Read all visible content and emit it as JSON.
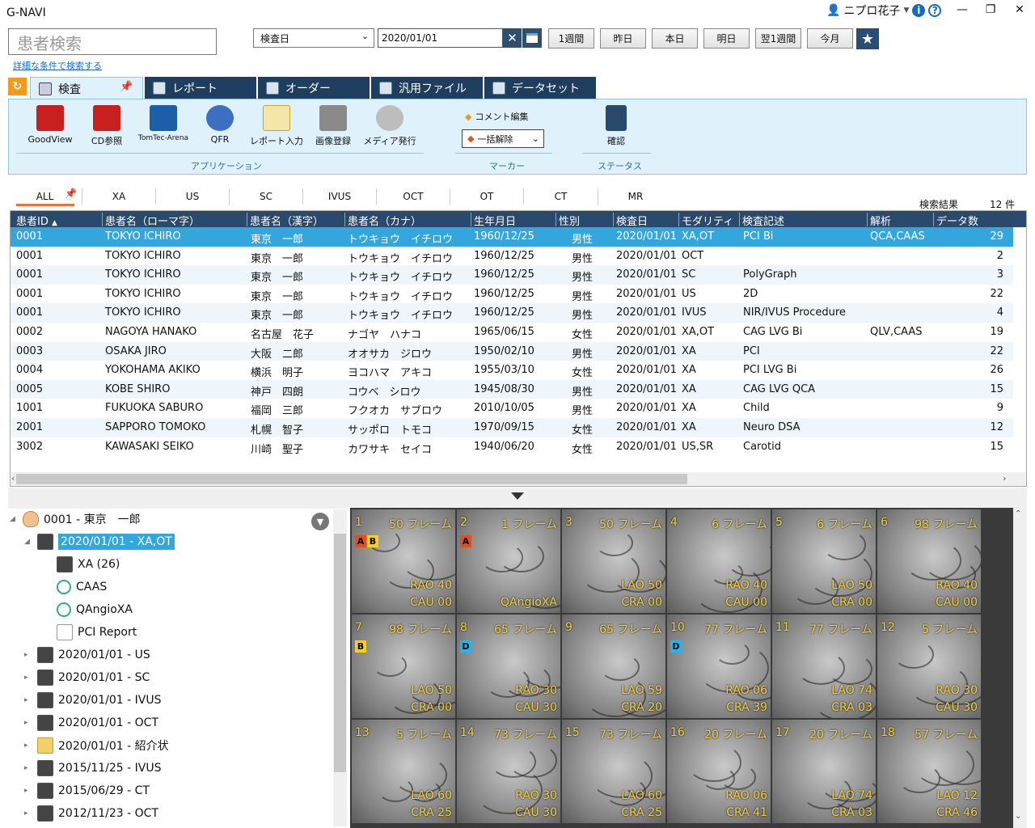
{
  "app": {
    "title": "G-NAVI",
    "user": "ニプロ花子"
  },
  "search": {
    "patient_placeholder": "患者検索",
    "advanced_link": "詳細な条件で検索する",
    "date_type": "検査日",
    "date_value": "2020/01/01",
    "quick_buttons": [
      "1週間",
      "昨日",
      "本日",
      "明日",
      "翌1週間",
      "今月"
    ]
  },
  "tabs": [
    "検査",
    "レポート",
    "オーダー",
    "汎用ファイル",
    "データセット"
  ],
  "ribbon": {
    "apps": [
      "GoodView",
      "CD参照",
      "TomTec-Arena",
      "QFR",
      "レポート入力",
      "画像登録",
      "メディア発行"
    ],
    "group_app": "アプリケーション",
    "comment_edit": "コメント編集",
    "marker_clear": "一括解除",
    "group_marker": "マーカー",
    "confirm": "確認",
    "group_status": "ステータス"
  },
  "modalities": [
    "ALL",
    "XA",
    "US",
    "SC",
    "IVUS",
    "OCT",
    "OT",
    "CT",
    "MR"
  ],
  "results": {
    "label": "検索結果",
    "count": "12 件"
  },
  "table": {
    "headers": [
      "患者ID",
      "患者名（ローマ字）",
      "患者名（漢字）",
      "患者名（カナ）",
      "生年月日",
      "性別",
      "検査日",
      "モダリティ",
      "検査記述",
      "解析",
      "データ数"
    ],
    "sort_indicator": "▲",
    "rows": [
      [
        "0001",
        "TOKYO ICHIRO",
        "東京　一郎",
        "トウキョウ　イチロウ",
        "1960/12/25",
        "男性",
        "2020/01/01",
        "XA,OT",
        "PCI Bi",
        "QCA,CAAS",
        "29"
      ],
      [
        "0001",
        "TOKYO ICHIRO",
        "東京　一郎",
        "トウキョウ　イチロウ",
        "1960/12/25",
        "男性",
        "2020/01/01",
        "OCT",
        "",
        "",
        "2"
      ],
      [
        "0001",
        "TOKYO ICHIRO",
        "東京　一郎",
        "トウキョウ　イチロウ",
        "1960/12/25",
        "男性",
        "2020/01/01",
        "SC",
        "PolyGraph",
        "",
        "3"
      ],
      [
        "0001",
        "TOKYO ICHIRO",
        "東京　一郎",
        "トウキョウ　イチロウ",
        "1960/12/25",
        "男性",
        "2020/01/01",
        "US",
        "2D",
        "",
        "22"
      ],
      [
        "0001",
        "TOKYO ICHIRO",
        "東京　一郎",
        "トウキョウ　イチロウ",
        "1960/12/25",
        "男性",
        "2020/01/01",
        "IVUS",
        "NIR/IVUS Procedure",
        "",
        "4"
      ],
      [
        "0002",
        "NAGOYA HANAKO",
        "名古屋　花子",
        "ナゴヤ　ハナコ",
        "1965/06/15",
        "女性",
        "2020/01/01",
        "XA,OT",
        "CAG LVG Bi",
        "QLV,CAAS",
        "19"
      ],
      [
        "0003",
        "OSAKA JIRO",
        "大阪　二郎",
        "オオサカ　ジロウ",
        "1950/02/10",
        "男性",
        "2020/01/01",
        "XA",
        "PCI",
        "",
        "22"
      ],
      [
        "0004",
        "YOKOHAMA AKIKO",
        "横浜　明子",
        "ヨコハマ　アキコ",
        "1955/03/10",
        "女性",
        "2020/01/01",
        "XA",
        "PCI LVG Bi",
        "",
        "26"
      ],
      [
        "0005",
        "KOBE SHIRO",
        "神戸　四朗",
        "コウベ　シロウ",
        "1945/08/30",
        "男性",
        "2020/01/01",
        "XA",
        "CAG LVG QCA",
        "",
        "15"
      ],
      [
        "1001",
        "FUKUOKA SABURO",
        "福岡　三郎",
        "フクオカ　サブロウ",
        "2010/10/05",
        "男性",
        "2020/01/01",
        "XA",
        "Child",
        "",
        "9"
      ],
      [
        "2001",
        "SAPPORO TOMOKO",
        "札幌　智子",
        "サッポロ　トモコ",
        "1970/09/15",
        "女性",
        "2020/01/01",
        "XA",
        "Neuro DSA",
        "",
        "12"
      ],
      [
        "3002",
        "KAWASAKI SEIKO",
        "川崎　聖子",
        "カワサキ　セイコ",
        "1940/06/20",
        "女性",
        "2020/01/01",
        "US,SR",
        "Carotid",
        "",
        "15"
      ]
    ]
  },
  "tree": {
    "patient": "0001 - 東京　一郎",
    "study": "2020/01/01 - XA,OT",
    "children": [
      "XA (26)",
      "CAAS",
      "QAngioXA",
      "PCI Report"
    ],
    "others": [
      "2020/01/01 - US",
      "2020/01/01 - SC",
      "2020/01/01 - IVUS",
      "2020/01/01 - OCT",
      "2020/01/01 - 紹介状",
      "2015/11/25 - IVUS",
      "2015/06/29 - CT",
      "2012/11/23 - OCT"
    ]
  },
  "thumbnails": [
    {
      "num": "1",
      "frames": "50 フレーム",
      "a1": "RAO 40",
      "a2": "CAU 00",
      "markers": [
        "A",
        "B"
      ]
    },
    {
      "num": "2",
      "frames": "1 フレーム",
      "a1": "",
      "a2": "QAngioXA",
      "markers": [
        "A"
      ]
    },
    {
      "num": "3",
      "frames": "50 フレーム",
      "a1": "LAO 50",
      "a2": "CRA 00",
      "markers": []
    },
    {
      "num": "4",
      "frames": "6 フレーム",
      "a1": "RAO 40",
      "a2": "CAU 00",
      "markers": []
    },
    {
      "num": "5",
      "frames": "6 フレーム",
      "a1": "LAO 50",
      "a2": "CRA 00",
      "markers": []
    },
    {
      "num": "6",
      "frames": "98 フレーム",
      "a1": "RAO 40",
      "a2": "CAU 00",
      "markers": []
    },
    {
      "num": "7",
      "frames": "98 フレーム",
      "a1": "LAO 50",
      "a2": "CRA 00",
      "markers": [
        "B"
      ]
    },
    {
      "num": "8",
      "frames": "65 フレーム",
      "a1": "RAO 30",
      "a2": "CAU 30",
      "markers": [
        "D"
      ]
    },
    {
      "num": "9",
      "frames": "65 フレーム",
      "a1": "LAO 59",
      "a2": "CRA 20",
      "markers": []
    },
    {
      "num": "10",
      "frames": "77 フレーム",
      "a1": "RAO 06",
      "a2": "CRA 39",
      "markers": [
        "D"
      ]
    },
    {
      "num": "11",
      "frames": "77 フレーム",
      "a1": "LAO 74",
      "a2": "CRA 03",
      "markers": []
    },
    {
      "num": "12",
      "frames": "5 フレーム",
      "a1": "RAO 30",
      "a2": "CAU 30",
      "markers": []
    },
    {
      "num": "13",
      "frames": "5 フレーム",
      "a1": "LAO 60",
      "a2": "CRA 25",
      "markers": []
    },
    {
      "num": "14",
      "frames": "73 フレーム",
      "a1": "RAO 30",
      "a2": "CAU 30",
      "markers": []
    },
    {
      "num": "15",
      "frames": "73 フレーム",
      "a1": "LAO 60",
      "a2": "CRA 25",
      "markers": []
    },
    {
      "num": "16",
      "frames": "20 フレーム",
      "a1": "RAO 06",
      "a2": "CRA 41",
      "markers": []
    },
    {
      "num": "17",
      "frames": "20 フレーム",
      "a1": "LAO 74",
      "a2": "CRA 03",
      "markers": []
    },
    {
      "num": "18",
      "frames": "57 フレーム",
      "a1": "LAO 12",
      "a2": "CRA 46",
      "markers": []
    }
  ],
  "colors": {
    "header_bg": "#2a4a6d",
    "selected_row": "#32a6dd",
    "ribbon_bg": "#dff2fb",
    "tab_dark": "#1e3d5f",
    "marker_A": "#e0501e",
    "marker_B": "#f5d020",
    "marker_D": "#2ab3e8"
  }
}
